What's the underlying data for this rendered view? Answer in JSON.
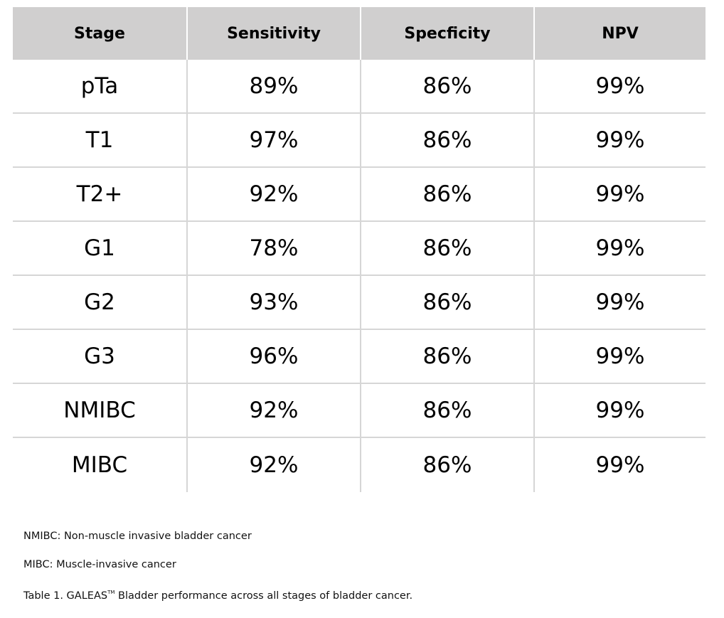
{
  "table": {
    "headers": [
      "Stage",
      "Sensitivity",
      "Specficity",
      "NPV"
    ],
    "rows": [
      [
        "pTa",
        "89%",
        "86%",
        "99%"
      ],
      [
        "T1",
        "97%",
        "86%",
        "99%"
      ],
      [
        "T2+",
        "92%",
        "86%",
        "99%"
      ],
      [
        "G1",
        "78%",
        "86%",
        "99%"
      ],
      [
        "G2",
        "93%",
        "86%",
        "99%"
      ],
      [
        "G3",
        "96%",
        "86%",
        "99%"
      ],
      [
        "NMIBC",
        "92%",
        "86%",
        "99%"
      ],
      [
        "MIBC",
        "92%",
        "86%",
        "99%"
      ]
    ]
  },
  "notes": {
    "nmibc": "NMIBC: Non-muscle invasive bladder cancer",
    "mibc": "MIBC: Muscle-invasive cancer",
    "caption_prefix": "Table 1. GALEAS",
    "caption_tm": "TM",
    "caption_suffix": " Bladder performance across all stages of bladder cancer."
  },
  "colors": {
    "header_bg": "#d0cfcf",
    "grid_line": "#d6d6d6",
    "text": "#000000"
  }
}
